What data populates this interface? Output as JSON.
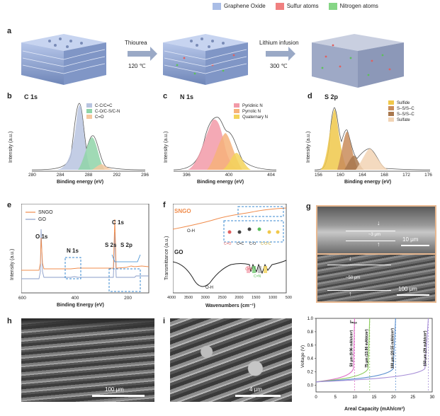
{
  "legend": [
    {
      "label": "Graphene Oxide",
      "color": "#a9bde6"
    },
    {
      "label": "Sulfur atoms",
      "color": "#f08080"
    },
    {
      "label": "Nitrogen atoms",
      "color": "#86d686"
    }
  ],
  "panel_a": {
    "letter": "a",
    "step1_reagent": "Thiourea",
    "step1_temp": "120 ℃",
    "step2_reagent": "Lithium infusion",
    "step2_temp": "300 ℃"
  },
  "panel_b": {
    "letter": "b",
    "title": "C 1s",
    "xlabel": "Binding energy (eV)",
    "ylabel": "Intensity (a.u.)",
    "ticks": [
      "280",
      "284",
      "288",
      "292",
      "296"
    ],
    "legend": [
      {
        "label": "C-C/C=C",
        "color": "#b8c4e0"
      },
      {
        "label": "C-O/C-S/C-N",
        "color": "#8fd4a8"
      },
      {
        "label": "C=O",
        "color": "#f5c8a0"
      }
    ]
  },
  "panel_c": {
    "letter": "c",
    "title": "N 1s",
    "xlabel": "Binding energy (eV)",
    "ylabel": "Intensity (a.u.)",
    "ticks": [
      "396",
      "400",
      "404"
    ],
    "legend": [
      {
        "label": "Pyridinic N",
        "color": "#f29aa8"
      },
      {
        "label": "Pyrrolic N",
        "color": "#f6b27a"
      },
      {
        "label": "Quaternary N",
        "color": "#f3d35a"
      }
    ]
  },
  "panel_d": {
    "letter": "d",
    "title": "S 2p",
    "xlabel": "Binding energy (eV)",
    "ylabel": "Intensity (a.u.)",
    "ticks": [
      "156",
      "160",
      "164",
      "168",
      "172",
      "176"
    ],
    "legend": [
      {
        "label": "Sulfide",
        "color": "#f0c84a"
      },
      {
        "label": "S–S/S–C",
        "color": "#c98c5a"
      },
      {
        "label": "S–S/S–C",
        "color": "#a8784e"
      },
      {
        "label": "Sulfate",
        "color": "#f2d4b4"
      }
    ]
  },
  "panel_e": {
    "letter": "e",
    "xlabel": "Binding Energy (eV)",
    "ylabel": "Intensity (a.u.)",
    "series": [
      {
        "name": "SNGO",
        "color": "#f08c4c"
      },
      {
        "name": "GO",
        "color": "#8a9cc8"
      }
    ],
    "peaks": [
      "O 1s",
      "N 1s",
      "C 1s",
      "S 2s",
      "S 2p"
    ],
    "ticks": [
      "600",
      "400",
      "200"
    ]
  },
  "panel_f": {
    "letter": "f",
    "xlabel": "Wavenumbers (cm⁻¹)",
    "ylabel": "Transmittance (a.u.)",
    "series": [
      {
        "name": "SNGO",
        "color": "#f08c4c"
      },
      {
        "name": "GO",
        "color": "#222222"
      }
    ],
    "annotations": [
      "O-H",
      "O-H",
      "C=O",
      "C=C",
      "C-O",
      "C-O-C",
      "C=S",
      "C=N"
    ],
    "ticks": [
      "4000",
      "3500",
      "3000",
      "2500",
      "2000",
      "1500",
      "1000",
      "500"
    ]
  },
  "panel_g": {
    "letter": "g",
    "thickness_top": "~3 μm",
    "scale_top": "10 μm",
    "thickness_bottom": "~50 μm",
    "scale_bottom": "100 μm"
  },
  "panel_h": {
    "letter": "h",
    "scale": "100 μm"
  },
  "panel_i": {
    "letter": "i",
    "scale": "4 μm"
  },
  "panel_j": {
    "xlabel": "Areal Capacity (mAh/cm²)",
    "ylabel": "Voltage (V)",
    "corner_label": "Iₘₐₓ",
    "xticks": [
      "0",
      "5",
      "10",
      "15",
      "20",
      "25",
      "30"
    ],
    "yticks": [
      "0.0",
      "0.2",
      "0.4",
      "0.6",
      "0.8",
      "1.0"
    ],
    "series": [
      {
        "label": "50 μm (9.96 mAh/cm²)",
        "capacity": 9.96,
        "color": "#e070c8"
      },
      {
        "label": "75 μm (13.86 mAh/cm²)",
        "capacity": 13.86,
        "color": "#8ccc5c"
      },
      {
        "label": "100 μm (20.55 mAh/cm²)",
        "capacity": 20.55,
        "color": "#5c90d0"
      },
      {
        "label": "150 μm (29 mAh/cm²)",
        "capacity": 29.0,
        "color": "#a890d8"
      }
    ]
  }
}
